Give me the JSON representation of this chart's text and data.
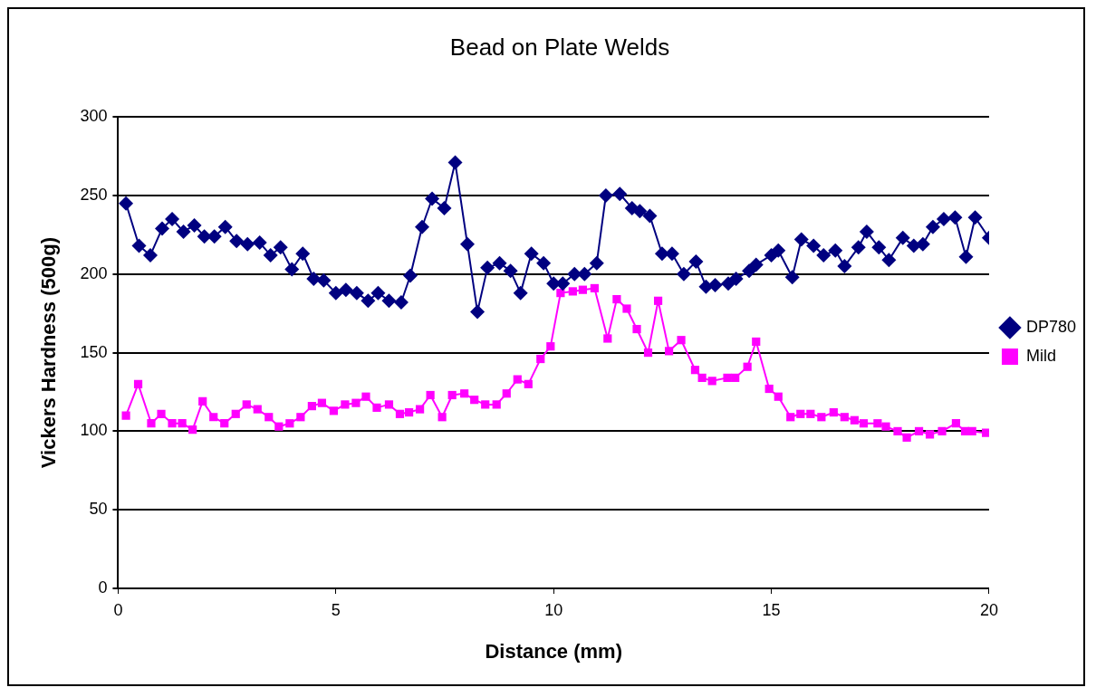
{
  "chart_data": {
    "type": "line",
    "title": "Bead on Plate Welds",
    "xlabel": "Distance (mm)",
    "ylabel": "Vickers Hardness (500g)",
    "xlim": [
      0,
      20
    ],
    "xticks": [
      0,
      5,
      10,
      15,
      20
    ],
    "ylim": [
      0,
      300
    ],
    "yticks": [
      0,
      50,
      100,
      150,
      200,
      250,
      300
    ],
    "grid": "y",
    "legend": "right",
    "series": [
      {
        "name": "DP780",
        "color": "#000080",
        "marker": "diamond",
        "x": [
          0.18,
          0.48,
          0.74,
          1.01,
          1.24,
          1.5,
          1.75,
          1.98,
          2.21,
          2.46,
          2.72,
          2.97,
          3.25,
          3.5,
          3.73,
          3.99,
          4.24,
          4.49,
          4.72,
          5.0,
          5.23,
          5.48,
          5.74,
          5.97,
          6.22,
          6.5,
          6.71,
          6.98,
          7.21,
          7.49,
          7.74,
          8.02,
          8.25,
          8.48,
          8.76,
          9.01,
          9.24,
          9.49,
          9.77,
          10.0,
          10.21,
          10.48,
          10.71,
          10.99,
          11.2,
          11.52,
          11.8,
          11.98,
          12.21,
          12.49,
          12.72,
          12.99,
          13.27,
          13.5,
          13.71,
          14.01,
          14.19,
          14.49,
          14.65,
          15.0,
          15.16,
          15.48,
          15.69,
          15.97,
          16.2,
          16.47,
          16.68,
          17.0,
          17.19,
          17.47,
          17.7,
          18.02,
          18.27,
          18.48,
          18.71,
          18.96,
          19.22,
          19.47,
          19.68,
          20.0
        ],
        "values": [
          245,
          218,
          212,
          229,
          235,
          227,
          231,
          224,
          224,
          230,
          221,
          219,
          220,
          212,
          217,
          203,
          213,
          197,
          196,
          188,
          190,
          188,
          183,
          188,
          183,
          182,
          199,
          230,
          248,
          242,
          271,
          219,
          176,
          204,
          207,
          202,
          188,
          213,
          207,
          194,
          194,
          200,
          200,
          207,
          250,
          251,
          242,
          240,
          237,
          213,
          213,
          200,
          208,
          192,
          193,
          194,
          197,
          202,
          206,
          212,
          215,
          198,
          222,
          218,
          212,
          215,
          205,
          217,
          227,
          217,
          209,
          223,
          218,
          219,
          230,
          235,
          236,
          211,
          236,
          223
        ]
      },
      {
        "name": "Mild",
        "color": "#ff00ff",
        "marker": "square",
        "x": [
          0.18,
          0.46,
          0.76,
          0.99,
          1.24,
          1.47,
          1.71,
          1.94,
          2.19,
          2.44,
          2.7,
          2.95,
          3.2,
          3.46,
          3.69,
          3.94,
          4.19,
          4.45,
          4.68,
          4.95,
          5.21,
          5.46,
          5.69,
          5.94,
          6.22,
          6.47,
          6.68,
          6.93,
          7.17,
          7.44,
          7.67,
          7.95,
          8.18,
          8.43,
          8.69,
          8.92,
          9.17,
          9.42,
          9.7,
          9.93,
          10.16,
          10.44,
          10.67,
          10.94,
          11.24,
          11.45,
          11.68,
          11.91,
          12.17,
          12.4,
          12.65,
          12.93,
          13.25,
          13.41,
          13.64,
          13.99,
          14.17,
          14.45,
          14.65,
          14.95,
          15.16,
          15.44,
          15.67,
          15.9,
          16.15,
          16.43,
          16.68,
          16.91,
          17.12,
          17.44,
          17.63,
          17.9,
          18.11,
          18.39,
          18.64,
          18.92,
          19.24,
          19.45,
          19.61,
          19.93
        ],
        "values": [
          110,
          130,
          105,
          111,
          105,
          105,
          101,
          119,
          109,
          105,
          111,
          117,
          114,
          109,
          103,
          105,
          109,
          116,
          118,
          113,
          117,
          118,
          122,
          115,
          117,
          111,
          112,
          114,
          123,
          109,
          123,
          124,
          120,
          117,
          117,
          124,
          133,
          130,
          146,
          154,
          188,
          189,
          190,
          191,
          159,
          184,
          178,
          165,
          150,
          183,
          151,
          158,
          139,
          134,
          132,
          134,
          134,
          141,
          157,
          127,
          122,
          109,
          111,
          111,
          109,
          112,
          109,
          107,
          105,
          105,
          103,
          100,
          96,
          100,
          98,
          100,
          105,
          100,
          100,
          99
        ]
      }
    ]
  }
}
